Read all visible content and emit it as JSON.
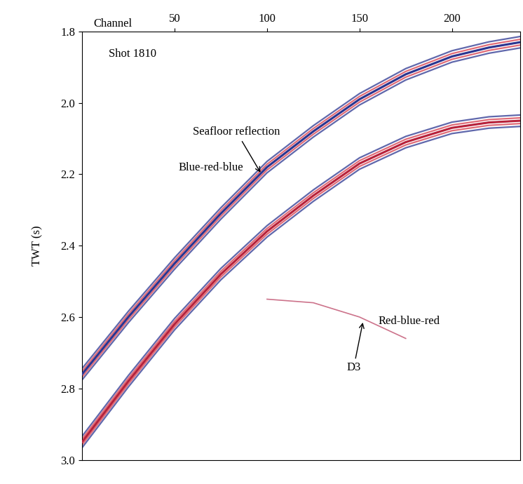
{
  "chart_data": {
    "type": "line",
    "title": "Shot 1810",
    "x_label": "Channel",
    "y_label": "TWT (s)",
    "x": [
      0,
      25,
      50,
      75,
      100,
      125,
      150,
      175,
      200,
      220,
      237
    ],
    "series": [
      {
        "color": "#2b3590",
        "values": [
          2.76,
          2.6,
          2.45,
          2.31,
          2.18,
          2.08,
          1.99,
          1.92,
          1.87,
          1.845,
          1.83
        ]
      },
      {
        "color": "#b8213a",
        "values": [
          2.95,
          2.78,
          2.62,
          2.48,
          2.36,
          2.26,
          2.17,
          2.11,
          2.07,
          2.055,
          2.05
        ]
      },
      {
        "color": "#c0506e",
        "values": [
          null,
          null,
          null,
          null,
          2.55,
          2.56,
          2.6,
          2.66,
          null,
          null,
          null
        ]
      }
    ],
    "annotations": [
      "Seafloor reflection",
      "Blue-red-blue",
      "Red-blue-red",
      "D3"
    ],
    "xlim": [
      0,
      237
    ],
    "ylim": [
      3.0,
      1.8
    ],
    "xticks": [
      50,
      100,
      150,
      200
    ],
    "yticks": [
      1.8,
      2.0,
      2.2,
      2.4,
      2.6,
      2.8,
      3.0
    ],
    "grid": false
  }
}
